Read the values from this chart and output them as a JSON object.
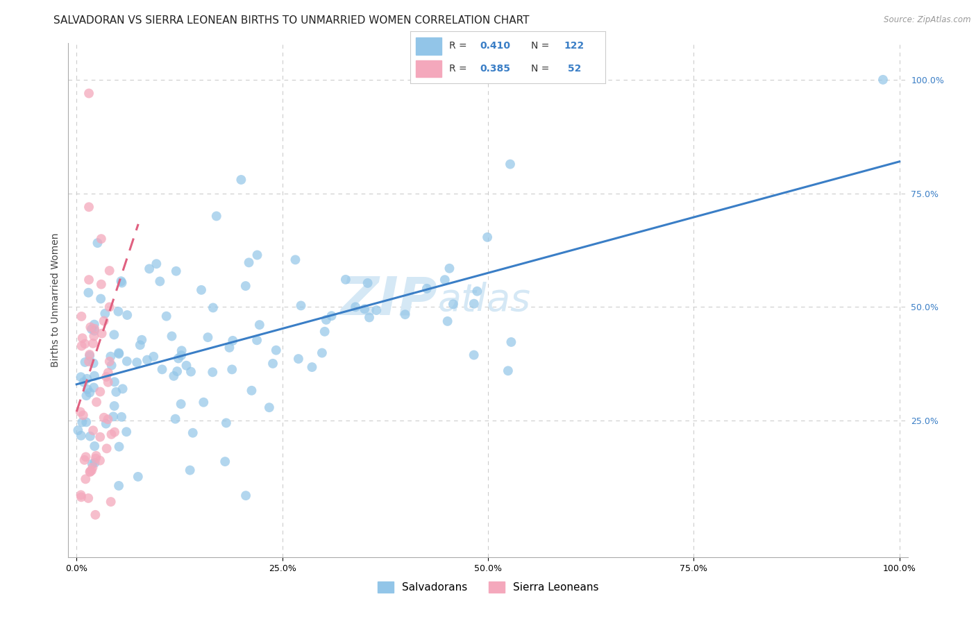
{
  "title": "SALVADORAN VS SIERRA LEONEAN BIRTHS TO UNMARRIED WOMEN CORRELATION CHART",
  "source": "Source: ZipAtlas.com",
  "ylabel": "Births to Unmarried Women",
  "xlim": [
    -0.01,
    1.01
  ],
  "ylim": [
    -0.05,
    1.08
  ],
  "xtick_labels": [
    "0.0%",
    "25.0%",
    "50.0%",
    "75.0%",
    "100.0%"
  ],
  "xtick_positions": [
    0.0,
    0.25,
    0.5,
    0.75,
    1.0
  ],
  "ytick_labels_right": [
    "25.0%",
    "50.0%",
    "75.0%",
    "100.0%"
  ],
  "ytick_positions_right": [
    0.25,
    0.5,
    0.75,
    1.0
  ],
  "blue_R": 0.41,
  "blue_N": 122,
  "pink_R": 0.385,
  "pink_N": 52,
  "blue_color": "#92C5E8",
  "pink_color": "#F4A8BC",
  "blue_line_color": "#3A7EC6",
  "pink_line_color": "#E06080",
  "watermark_zip": "ZIP",
  "watermark_atlas": "atlas",
  "watermark_color": "#D5E8F5",
  "background_color": "#FFFFFF",
  "grid_color": "#CCCCCC",
  "title_fontsize": 11,
  "label_fontsize": 10,
  "tick_fontsize": 9
}
